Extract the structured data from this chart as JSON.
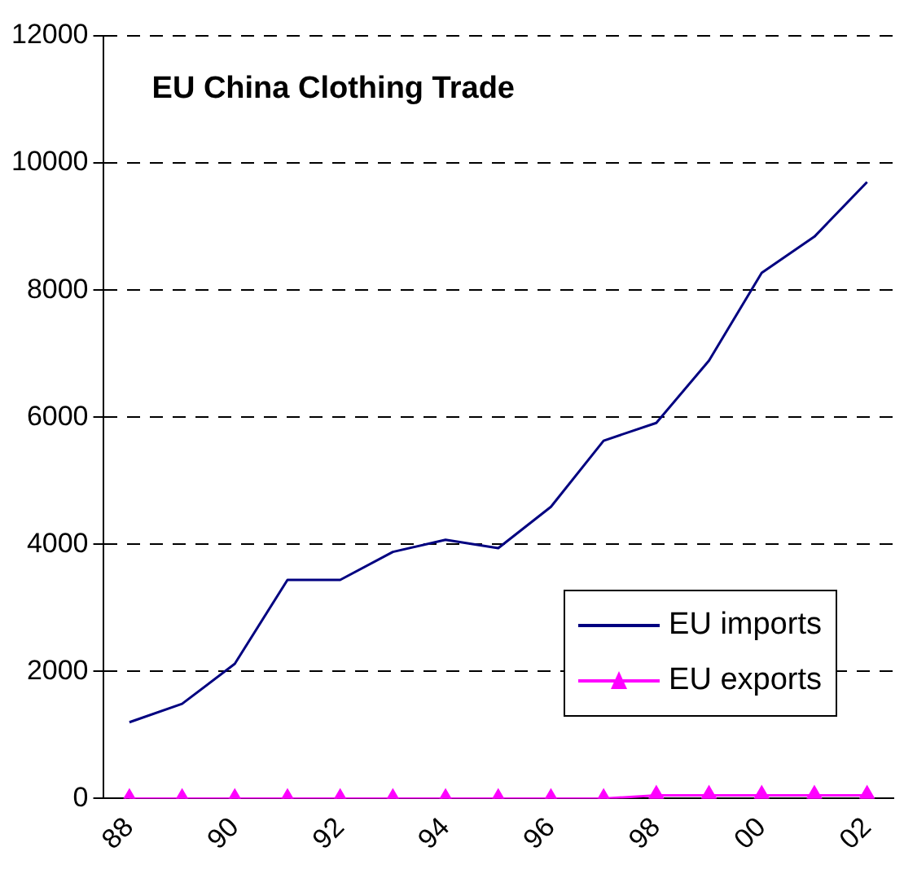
{
  "chart_data": {
    "type": "line",
    "title": "EU China Clothing Trade",
    "categories": [
      "88",
      null,
      "90",
      null,
      "92",
      null,
      "94",
      null,
      "96",
      null,
      "98",
      null,
      "00",
      null,
      "02"
    ],
    "series": [
      {
        "name": "EU imports",
        "color": "#000080",
        "marker": "none",
        "values": [
          1200,
          1490,
          2120,
          3440,
          3440,
          3880,
          4070,
          3940,
          4590,
          5630,
          5910,
          6890,
          8270,
          8840,
          9700
        ]
      },
      {
        "name": "EU exports",
        "color": "#ff00ff",
        "marker": "triangle",
        "values": [
          0,
          0,
          0,
          0,
          0,
          0,
          0,
          0,
          0,
          0,
          50,
          50,
          50,
          50,
          50
        ]
      }
    ],
    "ylim": [
      0,
      12000
    ],
    "yticks": [
      0,
      2000,
      4000,
      6000,
      8000,
      10000,
      12000
    ],
    "grid": "y",
    "legend": "bottom right"
  }
}
